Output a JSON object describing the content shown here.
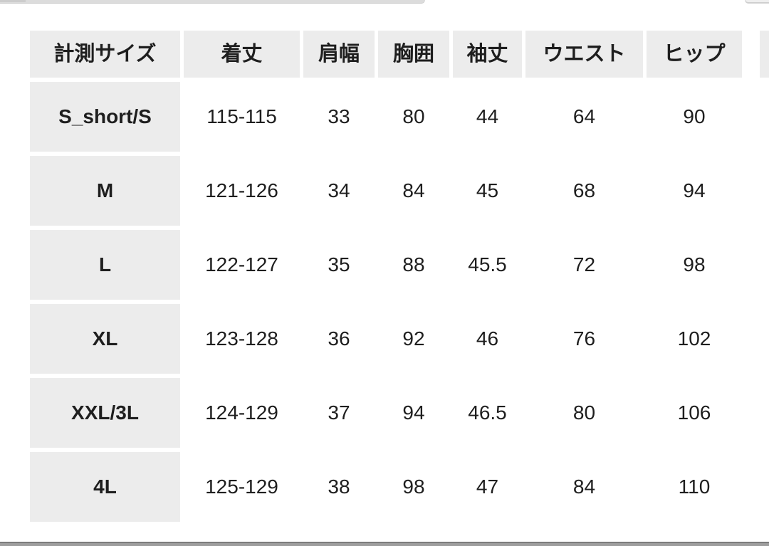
{
  "page": {
    "background": "#ffffff",
    "fragments": {
      "top_left_bar_color": "#dcdcdc",
      "top_right_bar_color": "#efefef",
      "right_column_sliver_color": "#ececec",
      "bottom_bar_fill": "#9e9e9e",
      "bottom_bar_line": "#7c7c7c"
    }
  },
  "size_table": {
    "header": {
      "columns": [
        "計測サイズ",
        "着丈",
        "肩幅",
        "胸囲",
        "袖丈",
        "ウエスト",
        "ヒップ"
      ]
    },
    "rows": [
      {
        "size": "S_short/S",
        "values": [
          "115-115",
          "33",
          "80",
          "44",
          "64",
          "90"
        ]
      },
      {
        "size": "M",
        "values": [
          "121-126",
          "34",
          "84",
          "45",
          "68",
          "94"
        ]
      },
      {
        "size": "L",
        "values": [
          "122-127",
          "35",
          "88",
          "45.5",
          "72",
          "98"
        ]
      },
      {
        "size": "XL",
        "values": [
          "123-128",
          "36",
          "92",
          "46",
          "76",
          "102"
        ]
      },
      {
        "size": "XXL/3L",
        "values": [
          "124-129",
          "37",
          "94",
          "46.5",
          "80",
          "106"
        ]
      },
      {
        "size": "4L",
        "values": [
          "125-129",
          "38",
          "98",
          "47",
          "84",
          "110"
        ]
      }
    ],
    "colors": {
      "header_bg": "#ececec",
      "size_col_bg": "#ececec",
      "cell_bg": "#ffffff",
      "text": "#1e1e1e"
    }
  }
}
